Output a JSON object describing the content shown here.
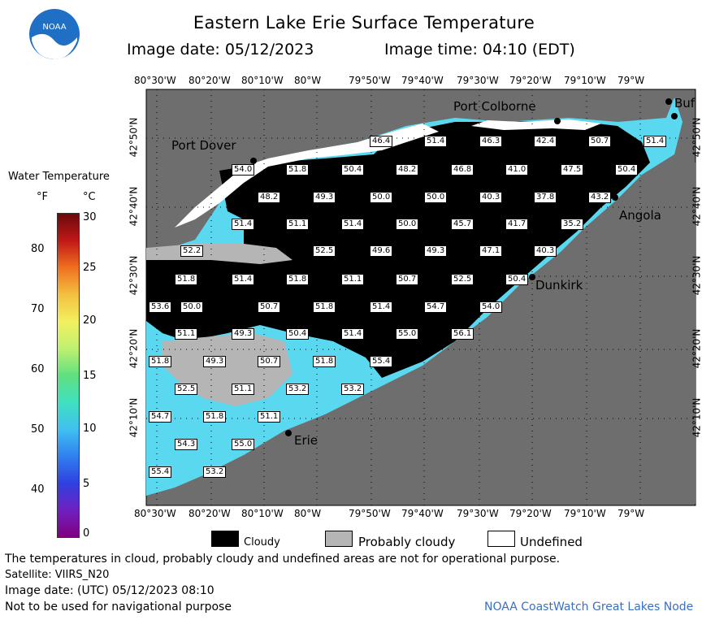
{
  "header": {
    "title": "Eastern Lake Erie Surface Temperature",
    "image_date_label": "Image date: 05/12/2023",
    "image_time_label": "Image time: 04:10 (EDT)",
    "logo_text": "NOAA"
  },
  "legend": {
    "title": "Water Temperature",
    "unit_f": "°F",
    "unit_c": "°C",
    "f_ticks": [
      "80",
      "70",
      "60",
      "50",
      "40"
    ],
    "c_ticks": [
      "30",
      "25",
      "20",
      "15",
      "10",
      "5",
      "0"
    ],
    "colors": [
      "#6b0a0a",
      "#c01818",
      "#f07020",
      "#f2c040",
      "#f2f060",
      "#c0f070",
      "#60e080",
      "#40e0c0",
      "#40c0f0",
      "#3080f0",
      "#3040e0",
      "#7020c0",
      "#800080"
    ]
  },
  "axes": {
    "top_lon": [
      "80°30'W",
      "80°20'W",
      "80°10'W",
      "80°W",
      "79°50'W",
      "79°40'W",
      "79°30'W",
      "79°20'W",
      "79°10'W",
      "79°W"
    ],
    "bottom_lon": [
      "80°30'W",
      "80°20'W",
      "80°10'W",
      "80°W",
      "79°50'W",
      "79°40'W",
      "79°30'W",
      "79°20'W",
      "79°10'W",
      "79°W"
    ],
    "lat": [
      "42°50'N",
      "42°40'N",
      "42°30'N",
      "42°20'N",
      "42°10'N"
    ]
  },
  "places": {
    "port_colborne": "Port Colborne",
    "port_dover": "Port Dover",
    "angola": "Angola",
    "dunkirk": "Dunkirk",
    "erie": "Erie",
    "buffalo": "Buf"
  },
  "temps": [
    {
      "v": "46.4"
    },
    {
      "v": "51.4"
    },
    {
      "v": "46.3"
    },
    {
      "v": "42.4"
    },
    {
      "v": "50.7"
    },
    {
      "v": "51.4"
    },
    {
      "v": "54.0"
    },
    {
      "v": "51.8"
    },
    {
      "v": "50.4"
    },
    {
      "v": "48.2"
    },
    {
      "v": "46.8"
    },
    {
      "v": "41.0"
    },
    {
      "v": "47.5"
    },
    {
      "v": "50.4"
    },
    {
      "v": "48.2"
    },
    {
      "v": "49.3"
    },
    {
      "v": "50.0"
    },
    {
      "v": "50.0"
    },
    {
      "v": "40.3"
    },
    {
      "v": "37.8"
    },
    {
      "v": "43.2"
    },
    {
      "v": "51.4"
    },
    {
      "v": "51.1"
    },
    {
      "v": "51.4"
    },
    {
      "v": "50.0"
    },
    {
      "v": "45.7"
    },
    {
      "v": "41.7"
    },
    {
      "v": "35.2"
    },
    {
      "v": "52.2"
    },
    {
      "v": "52.5"
    },
    {
      "v": "49.6"
    },
    {
      "v": "49.3"
    },
    {
      "v": "47.1"
    },
    {
      "v": "40.3"
    },
    {
      "v": "51.8"
    },
    {
      "v": "51.4"
    },
    {
      "v": "51.8"
    },
    {
      "v": "51.1"
    },
    {
      "v": "50.7"
    },
    {
      "v": "52.5"
    },
    {
      "v": "50.4"
    },
    {
      "v": "53.6"
    },
    {
      "v": "50.0"
    },
    {
      "v": "50.7"
    },
    {
      "v": "51.8"
    },
    {
      "v": "51.4"
    },
    {
      "v": "54.7"
    },
    {
      "v": "54.0"
    },
    {
      "v": "51.1"
    },
    {
      "v": "49.3"
    },
    {
      "v": "50.4"
    },
    {
      "v": "51.4"
    },
    {
      "v": "55.0"
    },
    {
      "v": "56.1"
    },
    {
      "v": "51.8"
    },
    {
      "v": "49.3"
    },
    {
      "v": "50.7"
    },
    {
      "v": "51.8"
    },
    {
      "v": "55.4"
    },
    {
      "v": "52.5"
    },
    {
      "v": "51.1"
    },
    {
      "v": "53.2"
    },
    {
      "v": "53.2"
    },
    {
      "v": "54.7"
    },
    {
      "v": "51.8"
    },
    {
      "v": "51.1"
    },
    {
      "v": "54.3"
    },
    {
      "v": "55.0"
    },
    {
      "v": "55.4"
    },
    {
      "v": "53.2"
    }
  ],
  "key": {
    "cloudy": "Cloudy",
    "probably_cloudy": "Probably cloudy",
    "undefined": "Undefined"
  },
  "notes": {
    "line1": "The temperatures in cloud, probably cloudy and undefined areas are not for operational purpose.",
    "satellite": "Satellite: VIIRS_N20",
    "utc_date": "Image date: (UTC) 05/12/2023  08:10",
    "nav": "Not to be used for navigational purpose",
    "credit": "NOAA CoastWatch Great Lakes Node"
  }
}
